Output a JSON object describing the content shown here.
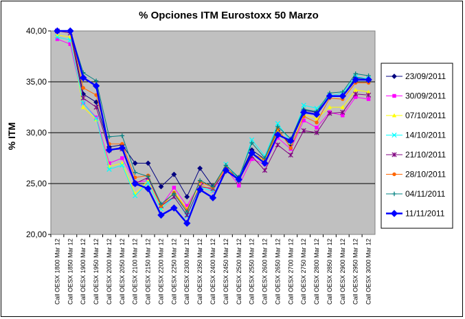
{
  "chart_data": {
    "type": "line",
    "title": "% Opciones ITM Eurostoxx 50 Marzo",
    "xlabel": "",
    "ylabel": "% ITM",
    "ylim": [
      20,
      40
    ],
    "yticks": [
      "20,00",
      "25,00",
      "30,00",
      "35,00",
      "40,00"
    ],
    "grid": true,
    "legend_position": "right",
    "plot_background": "#C0C0C0",
    "categories": [
      "Call OESX 1800 Mar 12",
      "Call OESX 1850 Mar 12",
      "Call OESX 1900 Mar 12",
      "Call OESX 1950 Mar 12",
      "Call OESX 2000 Mar 12",
      "Call OESX 2050 Mar 12",
      "Call OESX 2100 Mar 12",
      "Call OESX 2150 Mar 12",
      "Call OESX 2200 Mar 12",
      "Call OESX 2250 Mar 12",
      "Call OESX 2300 Mar 12",
      "Call OESX 2350 Mar 12",
      "Call OESX 2400 Mar 12",
      "Call OESX 2450 Mar 12",
      "Call OESX 2500 Mar 12",
      "Call OESX 2550 Mar 12",
      "Call OESX 2600 Mar 12",
      "Call OESX 2650 Mar 12",
      "Call OESX 2700 Mar 12",
      "Call OESX 2750 Mar 12",
      "Call OESX 2800 Mar 12",
      "Call OESX 2850 Mar 12",
      "Call OESX 2900 Mar 12",
      "Call OESX 2950 Mar 12",
      "Call OESX 3000 Mar 12"
    ],
    "series": [
      {
        "name": "23/09/2011",
        "color": "#000080",
        "marker": "diamond",
        "width": 1,
        "values": [
          40.3,
          40.1,
          33.8,
          33.0,
          28.6,
          28.8,
          27.0,
          27.0,
          24.7,
          25.9,
          23.7,
          26.5,
          24.7,
          26.5,
          25.6,
          28.3,
          27.4,
          30.2,
          28.8,
          32.2,
          32.0,
          33.6,
          33.6,
          35.4,
          35.3
        ]
      },
      {
        "name": "30/09/2011",
        "color": "#FF00FF",
        "marker": "square",
        "width": 1,
        "values": [
          39.2,
          38.7,
          32.9,
          31.5,
          27.0,
          27.5,
          25.1,
          25.3,
          22.8,
          24.6,
          22.8,
          25.0,
          24.3,
          26.5,
          24.8,
          27.4,
          26.9,
          29.5,
          28.4,
          31.2,
          30.5,
          32.0,
          31.7,
          33.5,
          33.3
        ]
      },
      {
        "name": "07/10/2011",
        "color": "#FFFF00",
        "marker": "triangle",
        "width": 1,
        "values": [
          39.6,
          39.4,
          32.5,
          31.3,
          26.7,
          27.0,
          24.0,
          25.3,
          22.6,
          24.2,
          22.5,
          24.9,
          24.4,
          26.6,
          25.3,
          28.0,
          27.2,
          30.1,
          29.0,
          31.8,
          31.4,
          32.5,
          32.5,
          34.2,
          34.0
        ]
      },
      {
        "name": "14/10/2011",
        "color": "#00FFFF",
        "marker": "x",
        "width": 1,
        "values": [
          39.4,
          39.1,
          32.9,
          31.4,
          26.4,
          26.8,
          23.8,
          25.1,
          22.5,
          23.7,
          21.8,
          24.6,
          24.3,
          26.9,
          25.4,
          29.3,
          27.7,
          30.9,
          29.1,
          32.7,
          32.4,
          33.6,
          33.9,
          35.5,
          35.3
        ]
      },
      {
        "name": "21/10/2011",
        "color": "#800080",
        "marker": "star",
        "width": 1,
        "values": [
          40.2,
          39.8,
          33.4,
          32.5,
          28.3,
          28.4,
          25.0,
          25.6,
          22.8,
          23.7,
          21.9,
          24.7,
          24.5,
          26.3,
          25.3,
          27.7,
          26.3,
          28.8,
          27.8,
          30.2,
          30.0,
          31.9,
          32.0,
          33.8,
          33.7
        ]
      },
      {
        "name": "28/10/2011",
        "color": "#FF6600",
        "marker": "circle",
        "width": 1,
        "values": [
          40.2,
          40.0,
          34.4,
          33.7,
          28.9,
          28.9,
          25.6,
          25.8,
          22.8,
          24.1,
          22.4,
          25.2,
          24.6,
          26.6,
          25.4,
          27.9,
          27.4,
          30.4,
          28.5,
          31.6,
          31.0,
          33.4,
          33.3,
          34.9,
          34.9
        ]
      },
      {
        "name": "04/11/2011",
        "color": "#008080",
        "marker": "plus",
        "width": 1,
        "values": [
          40.5,
          40.2,
          35.9,
          35.1,
          29.6,
          29.7,
          26.1,
          25.7,
          23.0,
          24.0,
          22.2,
          25.3,
          24.7,
          26.8,
          25.6,
          29.0,
          27.5,
          30.6,
          29.4,
          32.3,
          32.1,
          33.9,
          34.0,
          35.8,
          35.6
        ]
      },
      {
        "name": "11/11/2011",
        "color": "#0000FF",
        "marker": "diamond",
        "width": 2.5,
        "values": [
          40.4,
          40.1,
          35.4,
          34.6,
          28.3,
          28.5,
          25.0,
          24.5,
          21.9,
          22.6,
          21.1,
          24.4,
          23.6,
          26.3,
          25.4,
          28.0,
          27.0,
          29.8,
          29.2,
          32.0,
          31.8,
          33.6,
          33.6,
          35.2,
          35.2
        ]
      }
    ]
  }
}
